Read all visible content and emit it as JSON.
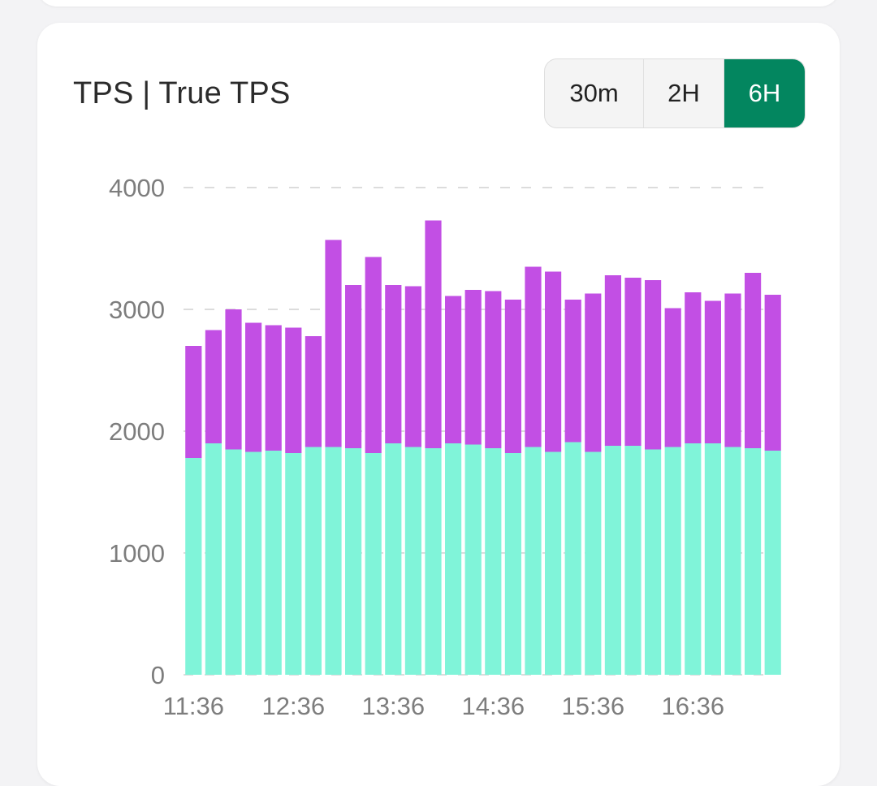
{
  "card": {
    "title": "TPS | True TPS"
  },
  "range_selector": {
    "options": [
      "30m",
      "2H",
      "6H"
    ],
    "selected": "6H"
  },
  "colors": {
    "true_tps": "#80f4d9",
    "tps": "#c24fe4",
    "active_button": "#03865f",
    "grid": "#dcdcdc",
    "tick_text": "#7d7d7d"
  },
  "chart_data": {
    "type": "bar",
    "stacked": true,
    "title": "TPS | True TPS",
    "xlabel": "",
    "ylabel": "",
    "ylim": [
      0,
      4000
    ],
    "y_ticks": [
      0,
      1000,
      2000,
      3000,
      4000
    ],
    "x_tick_labels": [
      "11:36",
      "12:36",
      "13:36",
      "14:36",
      "15:36",
      "16:36"
    ],
    "grid": "horizontal dashed",
    "series": [
      {
        "values": [
          1780,
          1900,
          1850,
          1830,
          1840,
          1820,
          1870,
          1870,
          1860,
          1820,
          1900,
          1870,
          1860,
          1900,
          1890,
          1860,
          1820,
          1870,
          1830,
          1910,
          1830,
          1880,
          1880,
          1850,
          1870,
          1900,
          1900,
          1870,
          1860,
          1840
        ]
      },
      {
        "values": [
          920,
          930,
          1150,
          1060,
          1030,
          1030,
          910,
          1700,
          1340,
          1610,
          1300,
          1320,
          1870,
          1210,
          1270,
          1290,
          1260,
          1480,
          1480,
          1170,
          1300,
          1400,
          1380,
          1390,
          1140,
          1240,
          1170,
          1260,
          1440,
          1280
        ]
      }
    ]
  }
}
